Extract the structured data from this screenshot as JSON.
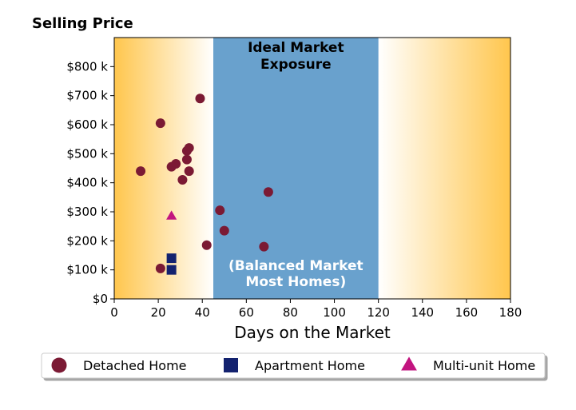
{
  "chart_data": {
    "type": "scatter",
    "title": "Selling Price",
    "xlabel": "Days on the Market",
    "ylabel": "",
    "xlim": [
      0,
      180
    ],
    "ylim": [
      0,
      900000
    ],
    "x_ticks": [
      0,
      20,
      40,
      60,
      80,
      100,
      120,
      140,
      160,
      180
    ],
    "y_ticks": [
      0,
      100000,
      200000,
      300000,
      400000,
      500000,
      600000,
      700000,
      800000
    ],
    "y_tick_labels": [
      "$0",
      "$100 k",
      "$200 k",
      "$300 k",
      "$400 k",
      "$500 k",
      "$600 k",
      "$700 k",
      "$800 k"
    ],
    "grid": false,
    "zones": [
      {
        "kind": "gradient-left",
        "x_range": [
          0,
          45
        ],
        "color": "#ffc64d"
      },
      {
        "kind": "band",
        "x_range": [
          45,
          120
        ],
        "color": "#69a1cd",
        "label_top": [
          "Ideal Market",
          "Exposure"
        ],
        "label_bottom": [
          "(Balanced Market",
          "Most Homes)"
        ]
      },
      {
        "kind": "gradient-right",
        "x_range": [
          120,
          180
        ],
        "color": "#ffc64d"
      }
    ],
    "series": [
      {
        "name": "Detached Home",
        "marker": "circle",
        "color": "#7b1a34",
        "points": [
          [
            12,
            440000
          ],
          [
            21,
            605000
          ],
          [
            21,
            105000
          ],
          [
            26,
            455000
          ],
          [
            28,
            465000
          ],
          [
            31,
            410000
          ],
          [
            33,
            480000
          ],
          [
            33,
            510000
          ],
          [
            34,
            520000
          ],
          [
            34,
            440000
          ],
          [
            39,
            690000
          ],
          [
            42,
            185000
          ],
          [
            48,
            305000
          ],
          [
            50,
            235000
          ],
          [
            68,
            180000
          ],
          [
            70,
            368000
          ]
        ]
      },
      {
        "name": "Apartment Home",
        "marker": "square",
        "color": "#13226f",
        "points": [
          [
            26,
            140000
          ],
          [
            26,
            100000
          ]
        ]
      },
      {
        "name": "Multi-unit Home",
        "marker": "triangle",
        "color": "#c2147f",
        "points": [
          [
            26,
            285000
          ]
        ]
      }
    ],
    "legend_position": "bottom"
  }
}
